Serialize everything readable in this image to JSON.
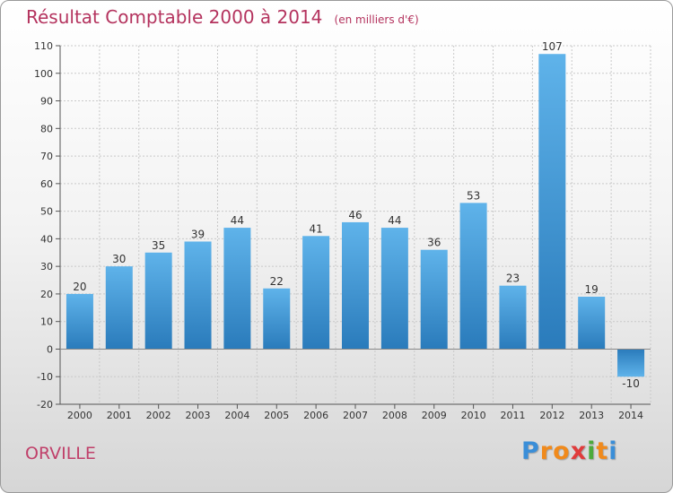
{
  "chart_data": {
    "type": "bar",
    "title": "Résultat Comptable 2000 à 2014",
    "subtitle": "(en milliers d'€)",
    "categories": [
      "2000",
      "2001",
      "2002",
      "2003",
      "2004",
      "2005",
      "2006",
      "2007",
      "2008",
      "2009",
      "2010",
      "2011",
      "2012",
      "2013",
      "2014"
    ],
    "values": [
      20,
      30,
      35,
      39,
      44,
      22,
      41,
      46,
      44,
      36,
      53,
      23,
      107,
      19,
      -10
    ],
    "ylim": [
      -20,
      110
    ],
    "yticks": [
      -20,
      -10,
      0,
      10,
      20,
      30,
      40,
      50,
      60,
      70,
      80,
      90,
      100,
      110
    ],
    "grid": true,
    "colors": {
      "bar_top": "#5fb3ea",
      "bar_bottom": "#2a7bbb",
      "title": "#b4335e",
      "axis": "#555555"
    }
  },
  "commune": "ORVILLE",
  "logo": {
    "letters": [
      "P",
      "r",
      "o",
      "x",
      "i",
      "t",
      "i"
    ],
    "colors": [
      "#3a8ed8",
      "#f08a1c",
      "#f08a1c",
      "#e03c3c",
      "#4caa3c",
      "#f08a1c",
      "#3a8ed8"
    ]
  }
}
